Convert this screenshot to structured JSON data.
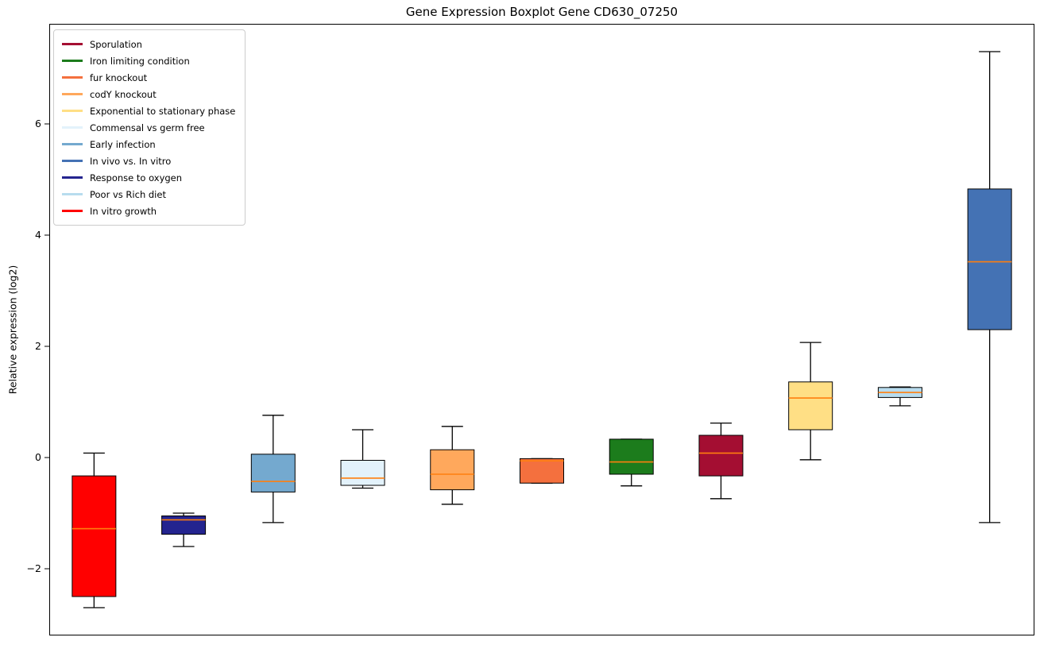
{
  "chart_data": {
    "type": "boxplot",
    "title": "Gene Expression Boxplot Gene CD630_07250",
    "ylabel": "Relative expression (log2)",
    "xlabel": "",
    "ylim": [
      -3.2,
      7.8
    ],
    "yticks": [
      {
        "value": -2,
        "label": "−2"
      },
      {
        "value": 0,
        "label": "0"
      },
      {
        "value": 2,
        "label": "2"
      },
      {
        "value": 4,
        "label": "4"
      },
      {
        "value": 6,
        "label": "6"
      }
    ],
    "grid": false,
    "legend_position": "upper left",
    "median_color": "#ff7f0e",
    "box_edge_color": "#000000",
    "legend": [
      {
        "label": "Sporulation",
        "color": "#a40e32"
      },
      {
        "label": "Iron limiting condition",
        "color": "#1c7c1c"
      },
      {
        "label": "fur knockout",
        "color": "#f4703e"
      },
      {
        "label": "codY knockout",
        "color": "#ffa85c"
      },
      {
        "label": "Exponential to stationary phase",
        "color": "#ffdf85"
      },
      {
        "label": "Commensal vs germ free",
        "color": "#e3f2fb"
      },
      {
        "label": "Early infection",
        "color": "#74a9cf"
      },
      {
        "label": "In vivo vs. In vitro",
        "color": "#4472b4"
      },
      {
        "label": "Response to oxygen",
        "color": "#24248f"
      },
      {
        "label": "Poor vs Rich diet",
        "color": "#b8dcee"
      },
      {
        "label": "In vitro growth",
        "color": "#ff0000"
      }
    ],
    "boxes": [
      {
        "name": "In vitro growth",
        "color": "#ff0000",
        "whisker_low": -2.7,
        "q1": -2.5,
        "median": -1.28,
        "q3": -0.33,
        "whisker_high": 0.08
      },
      {
        "name": "Response to oxygen",
        "color": "#24248f",
        "whisker_low": -1.6,
        "q1": -1.38,
        "median": -1.12,
        "q3": -1.05,
        "whisker_high": -1.0
      },
      {
        "name": "Early infection",
        "color": "#74a9cf",
        "whisker_low": -1.17,
        "q1": -0.62,
        "median": -0.43,
        "q3": 0.06,
        "whisker_high": 0.76
      },
      {
        "name": "Commensal vs germ free",
        "color": "#e3f2fb",
        "whisker_low": -0.55,
        "q1": -0.5,
        "median": -0.37,
        "q3": -0.05,
        "whisker_high": 0.5
      },
      {
        "name": "codY knockout",
        "color": "#ffa85c",
        "whisker_low": -0.84,
        "q1": -0.58,
        "median": -0.3,
        "q3": 0.14,
        "whisker_high": 0.56
      },
      {
        "name": "fur knockout",
        "color": "#f4703e",
        "whisker_low": -0.46,
        "q1": -0.46,
        "median": -0.06,
        "q3": -0.02,
        "whisker_high": -0.02
      },
      {
        "name": "Iron limiting condition",
        "color": "#1c7c1c",
        "whisker_low": -0.51,
        "q1": -0.3,
        "median": -0.08,
        "q3": 0.33,
        "whisker_high": 0.33
      },
      {
        "name": "Sporulation",
        "color": "#a40e32",
        "whisker_low": -0.74,
        "q1": -0.33,
        "median": 0.08,
        "q3": 0.4,
        "whisker_high": 0.62
      },
      {
        "name": "Exponential to stationary phase",
        "color": "#ffdf85",
        "whisker_low": -0.04,
        "q1": 0.5,
        "median": 1.07,
        "q3": 1.36,
        "whisker_high": 2.07
      },
      {
        "name": "Poor vs Rich diet",
        "color": "#b8dcee",
        "whisker_low": 0.93,
        "q1": 1.08,
        "median": 1.17,
        "q3": 1.26,
        "whisker_high": 1.27
      },
      {
        "name": "In vivo vs. In vitro",
        "color": "#4472b4",
        "whisker_low": -1.17,
        "q1": 2.3,
        "median": 3.52,
        "q3": 4.83,
        "whisker_high": 7.3
      }
    ]
  }
}
